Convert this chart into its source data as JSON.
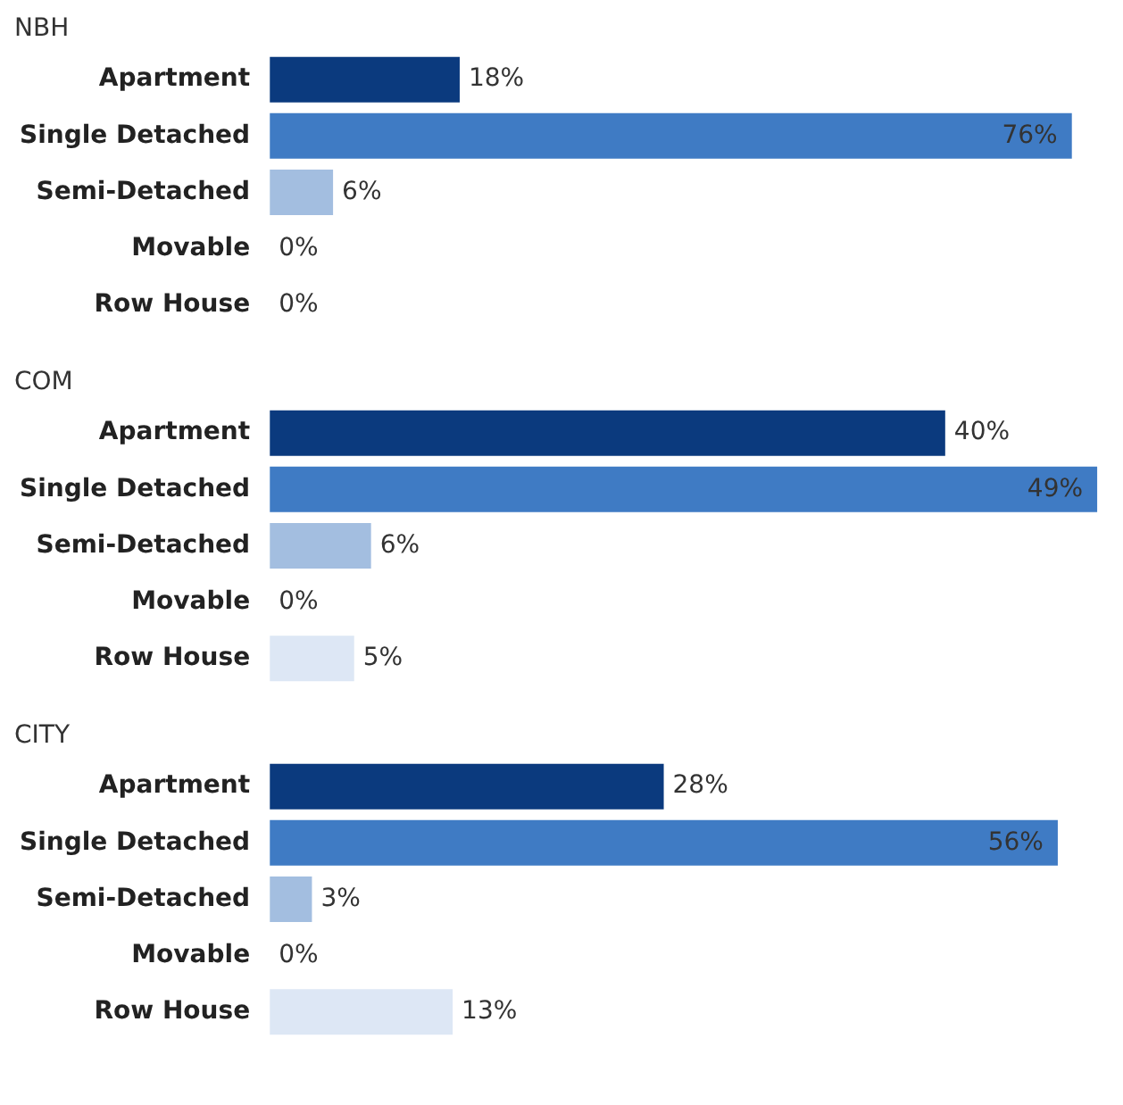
{
  "chart_data": [
    {
      "type": "bar",
      "orientation": "horizontal",
      "title": "NBH",
      "categories": [
        "Apartment",
        "Single Detached",
        "Semi-Detached",
        "Movable",
        "Row House"
      ],
      "values": [
        18,
        76,
        6,
        0,
        0
      ],
      "colors": [
        "#0b3a7e",
        "#3f7bc4",
        "#a3bee0",
        "#dde7f5",
        "#dde7f5"
      ],
      "value_labels": [
        "18%",
        "76%",
        "6%",
        "0%",
        "0%"
      ]
    },
    {
      "type": "bar",
      "orientation": "horizontal",
      "title": "COM",
      "categories": [
        "Apartment",
        "Single Detached",
        "Semi-Detached",
        "Movable",
        "Row House"
      ],
      "values": [
        40,
        49,
        6,
        0,
        5
      ],
      "colors": [
        "#0b3a7e",
        "#3f7bc4",
        "#a3bee0",
        "#dde7f5",
        "#dde7f5"
      ],
      "value_labels": [
        "40%",
        "49%",
        "6%",
        "0%",
        "5%"
      ]
    },
    {
      "type": "bar",
      "orientation": "horizontal",
      "title": "CITY",
      "categories": [
        "Apartment",
        "Single Detached",
        "Semi-Detached",
        "Movable",
        "Row House"
      ],
      "values": [
        28,
        56,
        3,
        0,
        13
      ],
      "colors": [
        "#0b3a7e",
        "#3f7bc4",
        "#a3bee0",
        "#dde7f5",
        "#dde7f5"
      ],
      "value_labels": [
        "28%",
        "56%",
        "3%",
        "0%",
        "13%"
      ]
    }
  ]
}
